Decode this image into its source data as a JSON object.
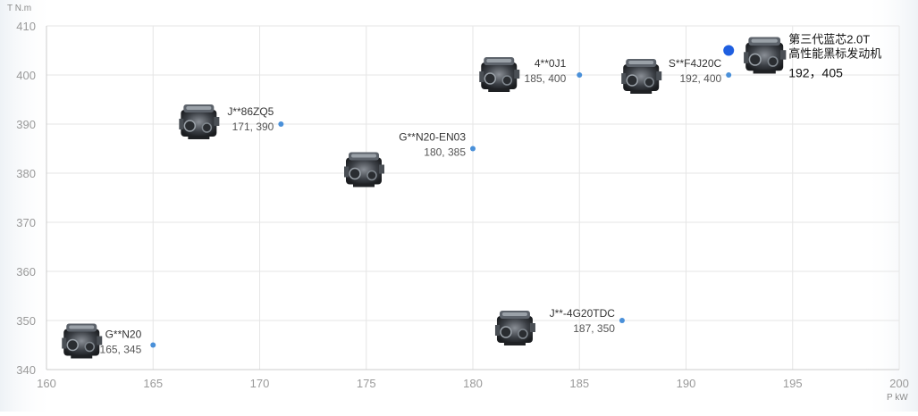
{
  "axes": {
    "y_unit": "T N.m",
    "x_unit": "P kW"
  },
  "chart_data": {
    "type": "scatter",
    "title": "",
    "xlabel": "P kW",
    "ylabel": "T N.m",
    "xlim": [
      160,
      200
    ],
    "ylim": [
      340,
      410
    ],
    "x_ticks": [
      160,
      165,
      170,
      175,
      180,
      185,
      190,
      195,
      200
    ],
    "y_ticks": [
      340,
      350,
      360,
      370,
      380,
      390,
      400,
      410
    ],
    "grid": true,
    "points": [
      {
        "name": "G**N20",
        "x": 165,
        "y": 345,
        "label": "165, 345",
        "highlight": false,
        "icon": "engine-icon"
      },
      {
        "name": "J**86ZQ5",
        "x": 171,
        "y": 390,
        "label": "171, 390",
        "highlight": false,
        "icon": "engine-icon"
      },
      {
        "name": "G**N20-EN03",
        "x": 180,
        "y": 385,
        "label": "180, 385",
        "highlight": false,
        "icon": "engine-icon"
      },
      {
        "name": "4**0J1",
        "x": 185,
        "y": 400,
        "label": "185, 400",
        "highlight": false,
        "icon": "engine-icon"
      },
      {
        "name": "J**-4G20TDC",
        "x": 187,
        "y": 350,
        "label": "187, 350",
        "highlight": false,
        "icon": "engine-icon"
      },
      {
        "name": "S**F4J20C",
        "x": 192,
        "y": 400,
        "label": "192, 400",
        "highlight": false,
        "icon": "engine-icon"
      },
      {
        "name_lines": [
          "第三代蓝芯2.0T",
          "高性能黑标发动机"
        ],
        "x": 192,
        "y": 405,
        "label": "192，405",
        "highlight": true,
        "icon": "engine-icon"
      }
    ],
    "colors": {
      "point": "#4a90d9",
      "highlight_point": "#1f5fe0",
      "grid": "#e6e6e6",
      "axis": "#cccccc"
    }
  }
}
